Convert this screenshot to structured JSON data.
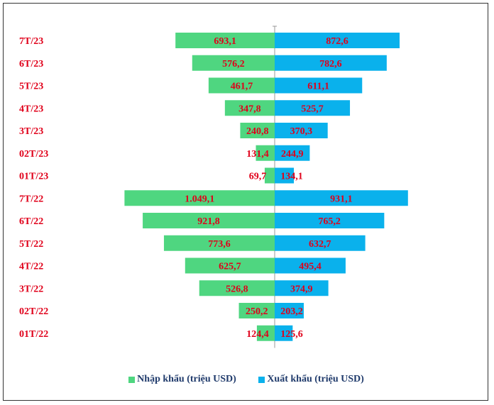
{
  "chart_data": {
    "type": "bar",
    "orientation": "horizontal-diverging",
    "categories": [
      "7T/23",
      "6T/23",
      "5T/23",
      "4T/23",
      "3T/23",
      "02T/23",
      "01T/23",
      "7T/22",
      "6T/22",
      "5T/22",
      "4T/22",
      "3T/22",
      "02T/22",
      "01T/22"
    ],
    "series": [
      {
        "name": "Nhập khẩu (triệu USD)",
        "side": "left",
        "color": "#4fd680",
        "values": [
          693.1,
          576.2,
          461.7,
          347.8,
          240.8,
          131.4,
          69.7,
          1049.1,
          921.8,
          773.6,
          625.7,
          526.8,
          250.2,
          124.4
        ],
        "labels": [
          "693,1",
          "576,2",
          "461,7",
          "347,8",
          "240,8",
          "131,4",
          "69,7",
          "1.049,1",
          "921,8",
          "773,6",
          "625,7",
          "526,8",
          "250,2",
          "124,4"
        ]
      },
      {
        "name": "Xuất khẩu (triệu USD)",
        "side": "right",
        "color": "#0ab1ec",
        "values": [
          872.6,
          782.6,
          611.1,
          525.7,
          370.3,
          244.9,
          134.1,
          931.1,
          765.2,
          632.7,
          495.4,
          374.9,
          203.2,
          125.6
        ],
        "labels": [
          "872,6",
          "782,6",
          "611,1",
          "525,7",
          "370,3",
          "244,9",
          "134,1",
          "931,1",
          "765,2",
          "632,7",
          "495,4",
          "374,9",
          "203,2",
          "125,6"
        ]
      }
    ],
    "legend_position": "bottom",
    "label_color": "#e0001a",
    "title": "",
    "xlabel": "",
    "ylabel": ""
  }
}
